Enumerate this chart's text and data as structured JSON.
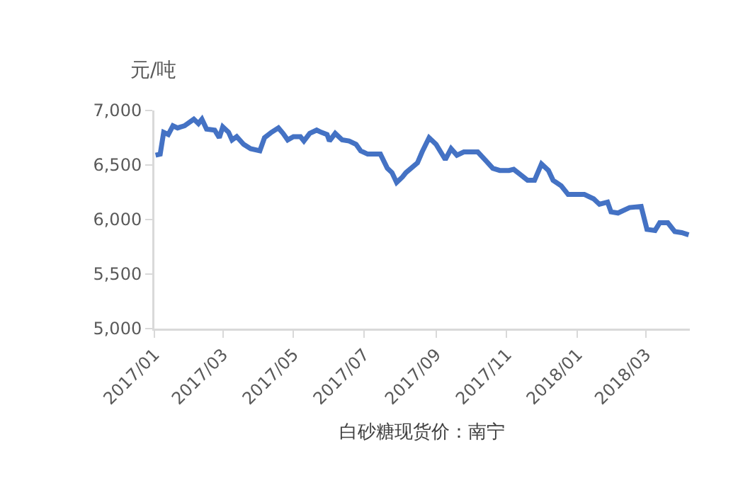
{
  "chart_data": {
    "type": "line",
    "ylabel": "元/吨",
    "xlabel": "白砂糖现货价：南宁",
    "x": [
      "2017-01-02",
      "2017-01-06",
      "2017-01-09",
      "2017-01-13",
      "2017-01-17",
      "2017-01-21",
      "2017-01-27",
      "2017-02-04",
      "2017-02-08",
      "2017-02-11",
      "2017-02-15",
      "2017-02-22",
      "2017-02-26",
      "2017-03-01",
      "2017-03-06",
      "2017-03-09",
      "2017-03-13",
      "2017-03-19",
      "2017-03-25",
      "2017-04-02",
      "2017-04-06",
      "2017-04-12",
      "2017-04-18",
      "2017-04-22",
      "2017-04-26",
      "2017-05-01",
      "2017-05-07",
      "2017-05-10",
      "2017-05-15",
      "2017-05-21",
      "2017-05-25",
      "2017-05-30",
      "2017-06-01",
      "2017-06-06",
      "2017-06-12",
      "2017-06-18",
      "2017-06-24",
      "2017-06-28",
      "2017-07-04",
      "2017-07-15",
      "2017-07-21",
      "2017-07-25",
      "2017-07-29",
      "2017-08-03",
      "2017-08-06",
      "2017-08-16",
      "2017-08-20",
      "2017-08-26",
      "2017-09-01",
      "2017-09-09",
      "2017-09-14",
      "2017-09-19",
      "2017-09-25",
      "2017-10-07",
      "2017-10-14",
      "2017-10-20",
      "2017-10-26",
      "2017-11-03",
      "2017-11-07",
      "2017-11-13",
      "2017-11-19",
      "2017-11-25",
      "2017-12-01",
      "2017-12-07",
      "2017-12-11",
      "2017-12-18",
      "2017-12-24",
      "2017-12-30",
      "2018-01-07",
      "2018-01-15",
      "2018-01-20",
      "2018-01-27",
      "2018-01-30",
      "2018-02-05",
      "2018-02-15",
      "2018-02-25",
      "2018-03-02",
      "2018-03-09",
      "2018-03-13",
      "2018-03-20",
      "2018-03-26",
      "2018-04-01",
      "2018-04-07"
    ],
    "series": [
      {
        "color": "#4472c4",
        "values": [
          6590,
          6600,
          6800,
          6780,
          6860,
          6840,
          6860,
          6920,
          6880,
          6920,
          6830,
          6820,
          6750,
          6850,
          6800,
          6730,
          6760,
          6690,
          6650,
          6630,
          6750,
          6800,
          6840,
          6790,
          6730,
          6760,
          6760,
          6720,
          6790,
          6820,
          6800,
          6780,
          6720,
          6790,
          6730,
          6720,
          6690,
          6630,
          6600,
          6600,
          6470,
          6430,
          6340,
          6390,
          6430,
          6520,
          6620,
          6750,
          6690,
          6550,
          6650,
          6590,
          6620,
          6620,
          6540,
          6470,
          6450,
          6450,
          6460,
          6410,
          6360,
          6360,
          6510,
          6450,
          6360,
          6310,
          6230,
          6230,
          6230,
          6190,
          6140,
          6160,
          6070,
          6060,
          6110,
          6120,
          5910,
          5900,
          5970,
          5970,
          5890,
          5880,
          5860
        ]
      }
    ],
    "xlim": [
      "2017-01-01",
      "2018-04-08"
    ],
    "xticks": [
      {
        "value": "2017-01-01",
        "label": "2017/01"
      },
      {
        "value": "2017-03-01",
        "label": "2017/03"
      },
      {
        "value": "2017-05-01",
        "label": "2017/05"
      },
      {
        "value": "2017-07-01",
        "label": "2017/07"
      },
      {
        "value": "2017-09-01",
        "label": "2017/09"
      },
      {
        "value": "2017-11-01",
        "label": "2017/11"
      },
      {
        "value": "2018-01-01",
        "label": "2018/01"
      },
      {
        "value": "2018-03-01",
        "label": "2018/03"
      }
    ],
    "ylim": [
      5000,
      7000
    ],
    "yticks": [
      {
        "value": 5000,
        "label": "5,000"
      },
      {
        "value": 5500,
        "label": "5,500"
      },
      {
        "value": 6000,
        "label": "6,000"
      },
      {
        "value": 6500,
        "label": "6,500"
      },
      {
        "value": 7000,
        "label": "7,000"
      }
    ],
    "grid": false,
    "marker": "none",
    "line_style": "solid"
  }
}
